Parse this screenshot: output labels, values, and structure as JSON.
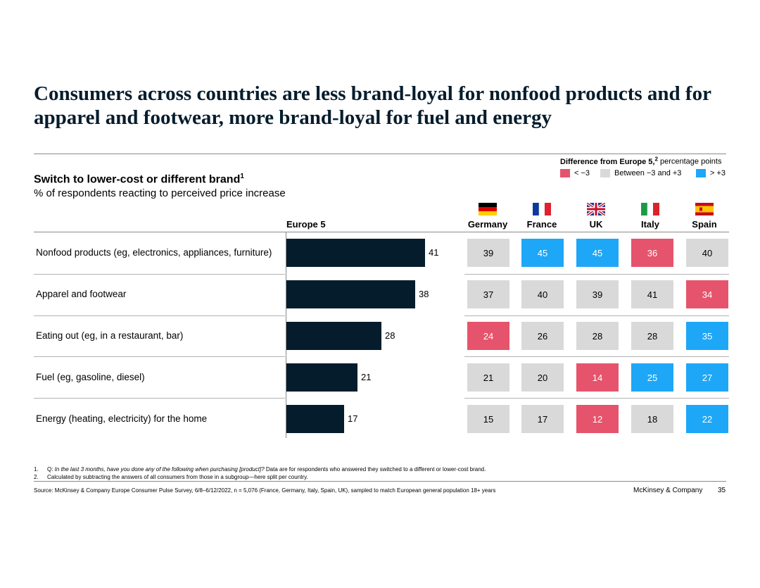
{
  "title": "Consumers across countries are less brand-loyal for nonfood products and for apparel and footwear, more brand-loyal for fuel and energy",
  "subtitle": "Switch to lower-cost or different brand",
  "subtitle_sup": "1",
  "unit": "% of respondents reacting to perceived price increase",
  "legend": {
    "title": "Difference from Europe 5,",
    "title_sup": "2",
    "title_suffix": " percentage points",
    "items": [
      {
        "label": "< −3",
        "color": "#e5546c"
      },
      {
        "label": "Between −3 and +3",
        "color": "#d9d9d9"
      },
      {
        "label": "> +3",
        "color": "#1ea7f7"
      }
    ]
  },
  "colors": {
    "bar": "#051c2c",
    "low": "#e5546c",
    "mid": "#d9d9d9",
    "high": "#1ea7f7"
  },
  "chart_data": {
    "type": "bar",
    "orientation": "horizontal",
    "title": "Switch to lower-cost or different brand",
    "categories": [
      "Nonfood products (eg, electronics, appliances, furniture)",
      "Apparel and footwear",
      "Eating out (eg, in a restaurant, bar)",
      "Fuel (eg, gasoline, diesel)",
      "Energy (heating, electricity) for the home"
    ],
    "series": [
      {
        "name": "Europe 5",
        "values": [
          41,
          38,
          28,
          21,
          17
        ]
      }
    ],
    "country_table": {
      "columns": [
        "Germany",
        "France",
        "UK",
        "Italy",
        "Spain"
      ],
      "flags": [
        "flag-germany-icon",
        "flag-france-icon",
        "flag-uk-icon",
        "flag-italy-icon",
        "flag-spain-icon"
      ],
      "values": [
        [
          39,
          45,
          45,
          36,
          40
        ],
        [
          37,
          40,
          39,
          41,
          34
        ],
        [
          24,
          26,
          28,
          28,
          35
        ],
        [
          21,
          20,
          14,
          25,
          27
        ],
        [
          15,
          17,
          12,
          18,
          22
        ]
      ]
    },
    "xlim": [
      0,
      41
    ]
  },
  "footnotes": [
    {
      "num": "1.",
      "parts": [
        {
          "text": "Q: ",
          "italic": false
        },
        {
          "text": "In the last 3 months, have you done any of the following when purchasing [product]?",
          "italic": true
        },
        {
          "text": " Data are for respondents who answered they switched to a different or lower-cost brand.",
          "italic": false
        }
      ]
    },
    {
      "num": "2.",
      "parts": [
        {
          "text": "Calculated by subtracting the answers of all consumers from those in a subgroup—here split per country.",
          "italic": false
        }
      ]
    }
  ],
  "source": "Source: McKinsey & Company Europe Consumer Pulse Survey, 6/8–6/12/2022, n = 5,076 (France, Germany, Italy, Spain, UK), sampled to match European general population 18+ years",
  "brand": "McKinsey & Company",
  "page_number": "35"
}
